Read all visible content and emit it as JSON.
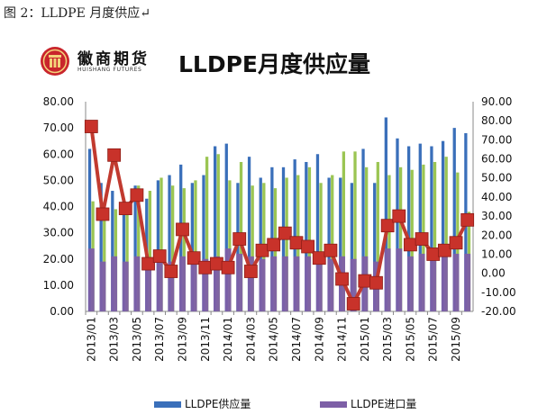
{
  "caption": "图 2：LLDPE 月度供应↵",
  "logo": {
    "cn": "徽商期货",
    "en": "HUISHANG FUTURES"
  },
  "colors": {
    "supply": "#3a6fba",
    "import": "#7d5fa6",
    "green": "#9bc553",
    "line": "#c13a2f",
    "marker": "#c8322a"
  },
  "chart_data": {
    "type": "bar",
    "title": "LLDPE月度供应量",
    "x": [
      "2013/01",
      "2013/02",
      "2013/03",
      "2013/04",
      "2013/05",
      "2013/06",
      "2013/07",
      "2013/08",
      "2013/09",
      "2013/10",
      "2013/11",
      "2013/12",
      "2014/01",
      "2014/02",
      "2014/03",
      "2014/04",
      "2014/05",
      "2014/06",
      "2014/07",
      "2014/08",
      "2014/09",
      "2014/10",
      "2014/11",
      "2014/12",
      "2015/01",
      "2015/02",
      "2015/03",
      "2015/04",
      "2015/05",
      "2015/06",
      "2015/07",
      "2015/08",
      "2015/09",
      "2015/10"
    ],
    "x_tick_labels": [
      "2013/01",
      "2013/03",
      "2013/05",
      "2013/07",
      "2013/09",
      "2013/11",
      "2014/01",
      "2014/03",
      "2014/05",
      "2014/07",
      "2014/09",
      "2014/11",
      "2015/01",
      "2015/03",
      "2015/05",
      "2015/07",
      "2015/09"
    ],
    "left_axis": {
      "min": 0,
      "max": 80,
      "step": 10,
      "tick_labels": [
        "0.00",
        "10.00",
        "20.00",
        "30.00",
        "40.00",
        "50.00",
        "60.00",
        "70.00",
        "80.00"
      ]
    },
    "right_axis": {
      "min": -20,
      "max": 90,
      "step": 10,
      "tick_labels": [
        "-20.00",
        "-10.00",
        "0.00",
        "10.00",
        "20.00",
        "30.00",
        "40.00",
        "50.00",
        "60.00",
        "70.00",
        "80.00",
        "90.00"
      ]
    },
    "series": [
      {
        "name": "LLDPE供应量",
        "axis": "left",
        "kind": "bar",
        "values": [
          62,
          49,
          46,
          40,
          48,
          43,
          50,
          52,
          56,
          49,
          52,
          63,
          64,
          49,
          59,
          51,
          55,
          55,
          58,
          57,
          60,
          51,
          51,
          49,
          62,
          49,
          74,
          66,
          63,
          64,
          63,
          65,
          70,
          68
        ]
      },
      {
        "name": "LLDPE进口量",
        "axis": "left",
        "kind": "bar",
        "values": [
          24,
          19,
          21,
          19,
          21,
          20,
          20,
          19,
          21,
          20,
          20,
          21,
          24,
          22,
          21,
          20,
          21,
          21,
          21,
          21,
          22,
          20,
          21,
          20,
          21,
          19,
          24,
          24,
          21,
          22,
          21,
          21,
          22,
          22
        ]
      },
      {
        "axis": "left",
        "kind": "bar",
        "values": [
          42,
          40,
          39,
          40,
          48,
          46,
          51,
          48,
          47,
          50,
          59,
          60,
          50,
          57,
          48,
          49,
          47,
          51,
          52,
          55,
          49,
          52,
          61,
          61,
          55,
          57,
          52,
          55,
          54,
          56,
          57,
          59,
          53,
          38
        ]
      },
      {
        "axis": "right",
        "kind": "line",
        "values": [
          77,
          31,
          62,
          34,
          41,
          5,
          9,
          1,
          23,
          8,
          3,
          5,
          3,
          18,
          1,
          12,
          15,
          21,
          16,
          14,
          8,
          12,
          -3,
          -16,
          -4,
          -5,
          25,
          30,
          15,
          18,
          10,
          12,
          16,
          28
        ]
      }
    ]
  }
}
